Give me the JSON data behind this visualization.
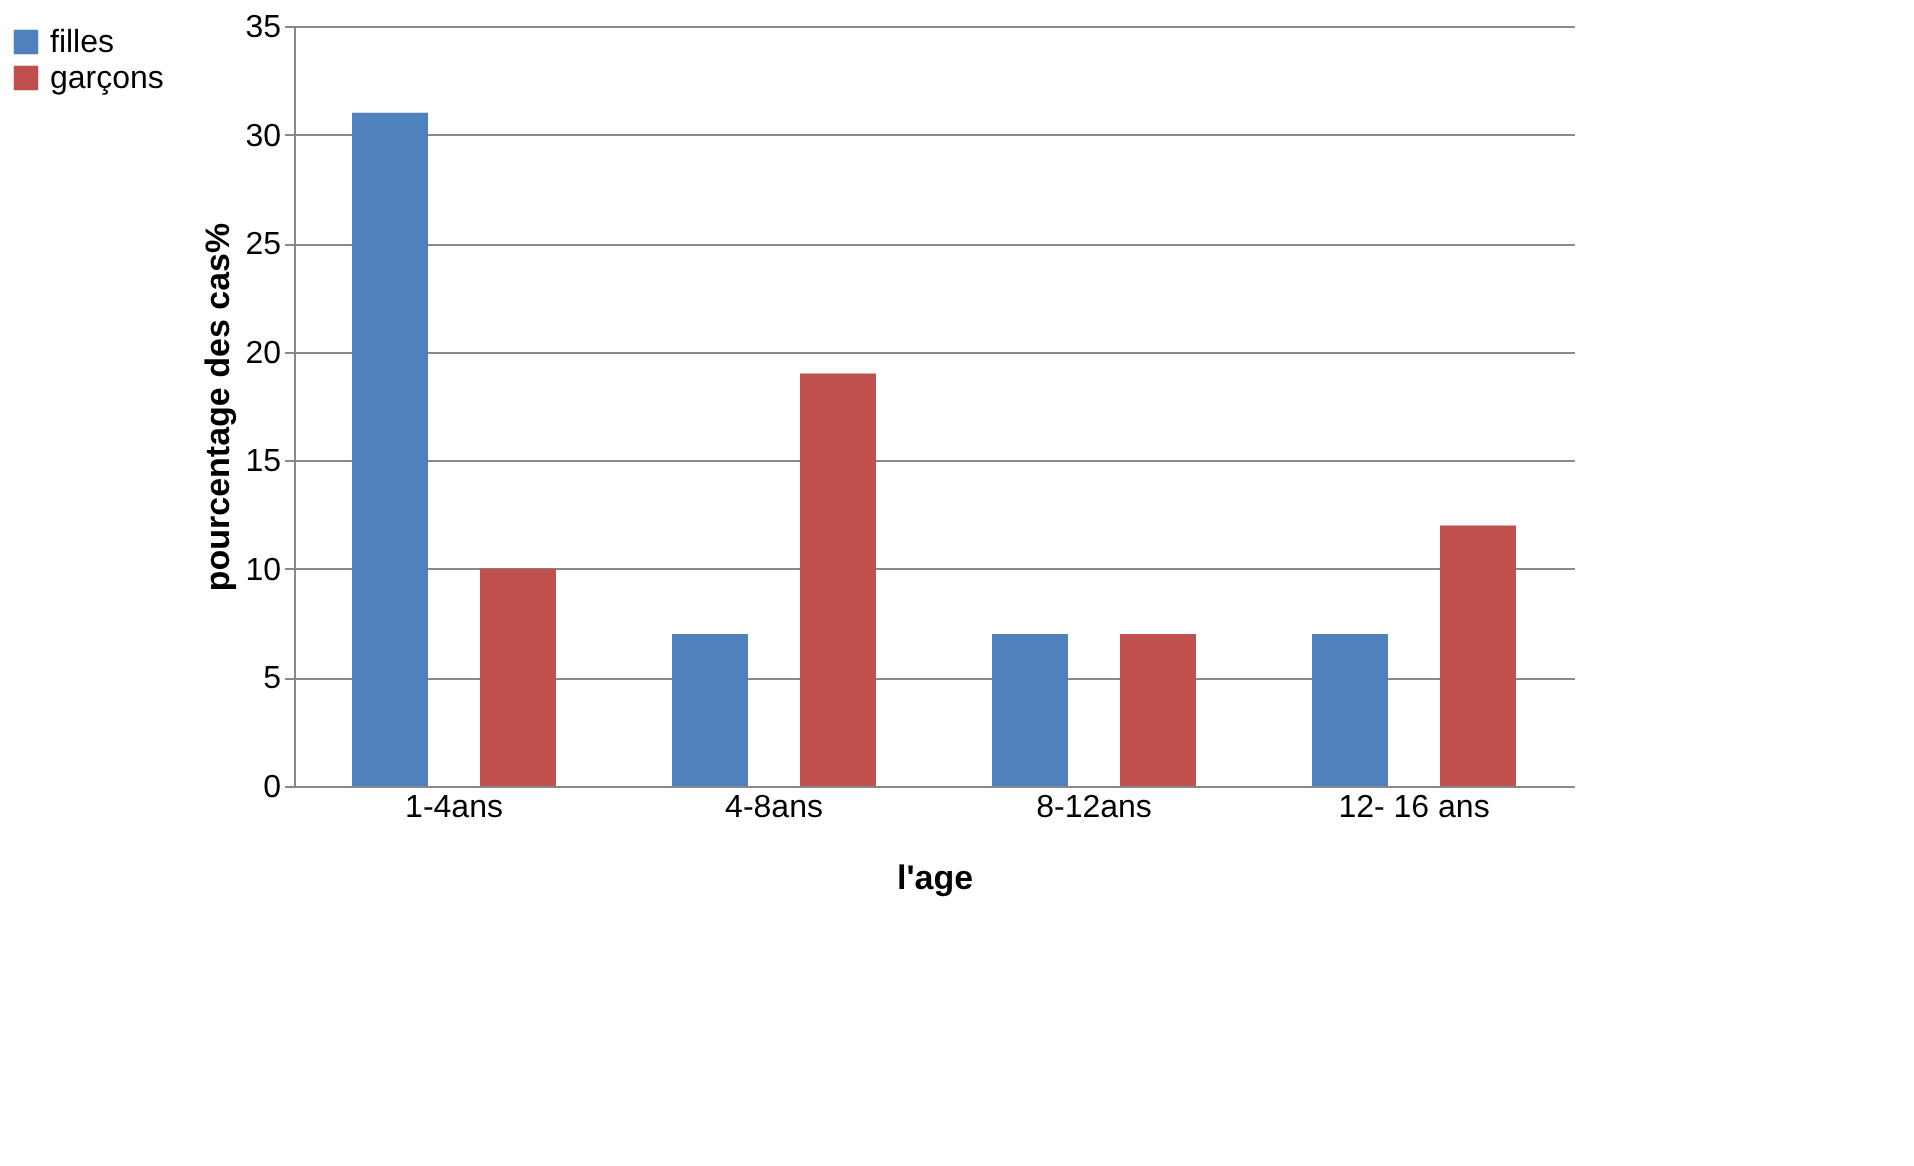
{
  "chart_data": {
    "type": "bar",
    "xlabel": "l'age",
    "ylabel": "pourcentage des cas%",
    "categories": [
      "1-4ans",
      "4-8ans",
      "8-12ans",
      "12- 16 ans"
    ],
    "series": [
      {
        "name": "filles",
        "color": "#4f81bd",
        "values": [
          31,
          7,
          7,
          7
        ]
      },
      {
        "name": "garçons",
        "color": "#c0504d",
        "values": [
          10,
          19,
          7,
          12
        ]
      }
    ],
    "ylim": [
      0,
      35
    ],
    "yticks": [
      0,
      5,
      10,
      15,
      20,
      25,
      30,
      35
    ],
    "grid": "y",
    "legend": "left"
  }
}
